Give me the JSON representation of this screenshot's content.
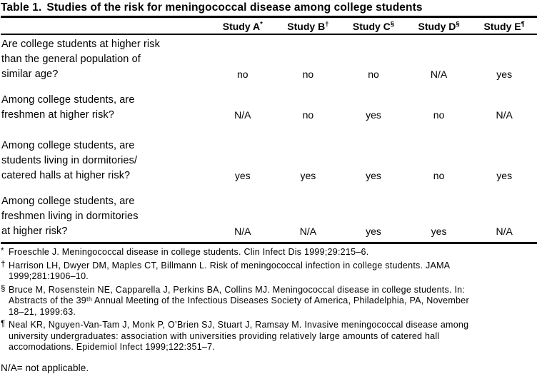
{
  "title": {
    "prefix": "Table 1.",
    "text": "Studies of the risk for meningococcal disease among college students"
  },
  "table": {
    "columns": [
      {
        "label": "Study A",
        "marker": "*"
      },
      {
        "label": "Study B",
        "marker": "†"
      },
      {
        "label": "Study C",
        "marker": "§"
      },
      {
        "label": "Study D",
        "marker": "§"
      },
      {
        "label": "Study E",
        "marker": "¶"
      }
    ],
    "rows": [
      {
        "question_lines": [
          "Are college students at higher risk",
          "than the general population of",
          "similar age?"
        ],
        "values": [
          "no",
          "no",
          "no",
          "N/A",
          "yes"
        ]
      },
      {
        "question_lines": [
          "Among college students, are",
          "freshmen at higher risk?"
        ],
        "values": [
          "N/A",
          "no",
          "yes",
          "no",
          "N/A"
        ]
      },
      {
        "question_lines": [
          "Among college students, are",
          "students living in dormitories/",
          "catered halls at higher risk?"
        ],
        "values": [
          "yes",
          "yes",
          "yes",
          "no",
          "yes"
        ]
      },
      {
        "question_lines": [
          "Among college students, are",
          "freshmen living in dormitories",
          "at higher risk?"
        ],
        "values": [
          "N/A",
          "N/A",
          "yes",
          "yes",
          "N/A"
        ]
      }
    ]
  },
  "footnotes": [
    {
      "marker": "*",
      "lines": [
        "Froeschle J. Meningococcal disease in college students. Clin Infect Dis 1999;29:215–6."
      ]
    },
    {
      "marker": "†",
      "lines": [
        "Harrison LH, Dwyer DM, Maples CT, Billmann L. Risk of meningococcal infection in college students. JAMA",
        "1999;281:1906–10."
      ]
    },
    {
      "marker": "§",
      "lines": [
        "Bruce M, Rosenstein NE, Capparella J, Perkins BA, Collins MJ. Meningococcal disease in college students. In:",
        "Abstracts of the 39ᵗʰ Annual Meeting of the Infectious Diseases Society of America, Philadelphia, PA, November",
        "18–21, 1999:63."
      ]
    },
    {
      "marker": "¶",
      "lines": [
        "Neal KR, Nguyen-Van-Tam J, Monk P, O’Brien SJ, Stuart J, Ramsay M. Invasive meningococcal disease among",
        "university undergraduates: association with universities providing relatively large amounts of catered hall",
        "accomodations. Epidemiol Infect 1999;122:351–7."
      ]
    }
  ],
  "legend": "N/A= not applicable."
}
